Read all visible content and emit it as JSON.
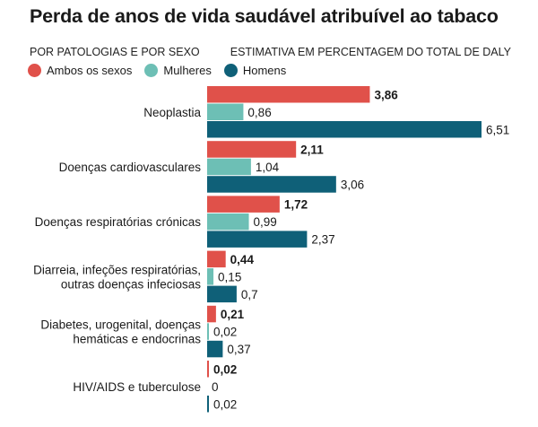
{
  "title": "Perda de anos de vida saudável atribuível ao tabaco",
  "subtitle_left": "POR PATOLOGIAS E POR SEXO",
  "subtitle_right": "ESTIMATIVA EM PERCENTAGEM DO TOTAL DE DALY",
  "colors": {
    "ambos": "#e0514a",
    "mulheres": "#6dbfb5",
    "homens": "#0f6078"
  },
  "legend": [
    "Ambos os sexos",
    "Mulheres",
    "Homens"
  ],
  "chart_data": {
    "type": "bar",
    "orientation": "horizontal",
    "categories": [
      [
        "Neoplastia"
      ],
      [
        "Doenças cardiovasculares"
      ],
      [
        "Doenças respiratórias crónicas"
      ],
      [
        "Diarreia, infeções respiratórias,",
        "outras doenças infeciosas"
      ],
      [
        "Diabetes, urogenital, doenças",
        "hemáticas e endocrinas"
      ],
      [
        "HIV/AIDS e tuberculose"
      ]
    ],
    "series": [
      {
        "name": "Ambos os sexos",
        "values": [
          3.86,
          2.11,
          1.72,
          0.44,
          0.21,
          0.02
        ],
        "labels": [
          "3,86",
          "2,11",
          "1,72",
          "0,44",
          "0,21",
          "0,02"
        ],
        "bold": true
      },
      {
        "name": "Mulheres",
        "values": [
          0.86,
          1.04,
          0.99,
          0.15,
          0.02,
          0
        ],
        "labels": [
          "0,86",
          "1,04",
          "0,99",
          "0,15",
          "0,02",
          "0"
        ],
        "bold": false
      },
      {
        "name": "Homens",
        "values": [
          6.51,
          3.06,
          2.37,
          0.7,
          0.37,
          0.02
        ],
        "labels": [
          "6,51",
          "3,06",
          "2,37",
          "0,7",
          "0,37",
          "0,02"
        ],
        "bold": false
      }
    ],
    "xlim": [
      0,
      6.51
    ],
    "grid": false,
    "legend_position": "top-left"
  }
}
